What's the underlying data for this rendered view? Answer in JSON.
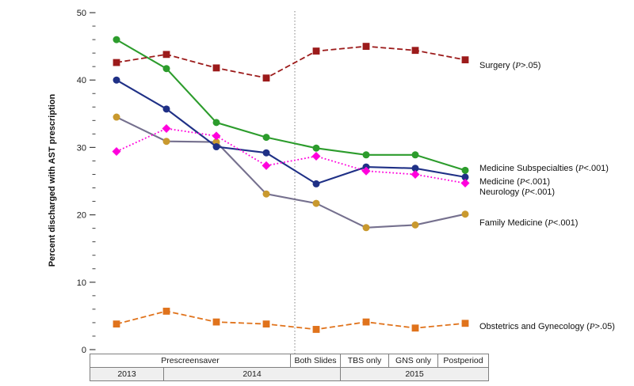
{
  "chart_data": {
    "type": "line",
    "title": "",
    "xlabel": "",
    "ylabel": "Percent discharged with AST prescription",
    "ylim": [
      0,
      50
    ],
    "y_major_ticks": [
      0,
      10,
      20,
      30,
      40,
      50
    ],
    "y_minor_tick_step": 2,
    "grid": false,
    "legend_position": "right-of-line-ends",
    "x_categories": [
      "2013 Prescreensaver",
      "2014 Prescreensaver",
      "2014 Prescreensaver",
      "2014 Prescreensaver",
      "2014 Both Slides",
      "2015 TBS only",
      "2015 GNS only",
      "2015 Postperiod"
    ],
    "phase_divider_after_index": 3,
    "series": [
      {
        "name": "Surgery",
        "label": "Surgery (P>.05)",
        "p_value": "P>.05",
        "color": "#9C1B1B",
        "marker": "square",
        "marker_color": "#9C1B1B",
        "line_style": "dashed",
        "values": [
          42.6,
          43.8,
          41.8,
          40.3,
          44.3,
          45.0,
          44.4,
          43.0
        ]
      },
      {
        "name": "Medicine Subspecialties",
        "label": "Medicine Subspecialties (P<.001)",
        "p_value": "P<.001",
        "color": "#2C9C2C",
        "marker": "circle",
        "marker_color": "#2C9C2C",
        "line_style": "solid",
        "values": [
          46.0,
          41.7,
          33.7,
          31.5,
          29.9,
          28.9,
          28.9,
          26.6
        ]
      },
      {
        "name": "Medicine",
        "label": "Medicine (P<.001)",
        "p_value": "P<.001",
        "color": "#1F3086",
        "marker": "circle",
        "marker_color": "#1F3086",
        "line_style": "solid",
        "values": [
          40.0,
          35.7,
          30.1,
          29.2,
          24.6,
          27.1,
          26.9,
          25.6
        ]
      },
      {
        "name": "Neurology",
        "label": "Neurology (P<.001)",
        "p_value": "P<.001",
        "color": "#FF00DC",
        "marker": "diamond",
        "marker_color": "#FF00DC",
        "line_style": "dotted",
        "values": [
          29.4,
          32.8,
          31.7,
          27.3,
          28.7,
          26.5,
          26.0,
          24.7
        ]
      },
      {
        "name": "Family Medicine",
        "label": "Family Medicine (P<.001)",
        "p_value": "P<.001",
        "color": "#75708E",
        "marker": "circle",
        "marker_color": "#C9992E",
        "line_style": "solid",
        "values": [
          34.5,
          30.9,
          30.8,
          23.1,
          21.7,
          18.1,
          18.5,
          20.1
        ]
      },
      {
        "name": "Obstetrics and Gynecology",
        "label": "Obstetrics and Gynecology (P>.05)",
        "p_value": "P>.05",
        "color": "#E0731C",
        "marker": "square",
        "marker_color": "#E0731C",
        "line_style": "dashed",
        "values": [
          3.8,
          5.7,
          4.1,
          3.8,
          3.0,
          4.1,
          3.2,
          3.9
        ]
      }
    ],
    "axis_table": {
      "period_row": [
        {
          "label": "Prescreensaver",
          "points_spanned": 4
        },
        {
          "label": "Both Slides",
          "points_spanned": 1
        },
        {
          "label": "TBS only",
          "points_spanned": 1
        },
        {
          "label": "GNS only",
          "points_spanned": 1
        },
        {
          "label": "Postperiod",
          "points_spanned": 1
        }
      ],
      "year_row": [
        {
          "label": "2013"
        },
        {
          "label": "2014"
        },
        {
          "label": "2015"
        }
      ]
    }
  }
}
